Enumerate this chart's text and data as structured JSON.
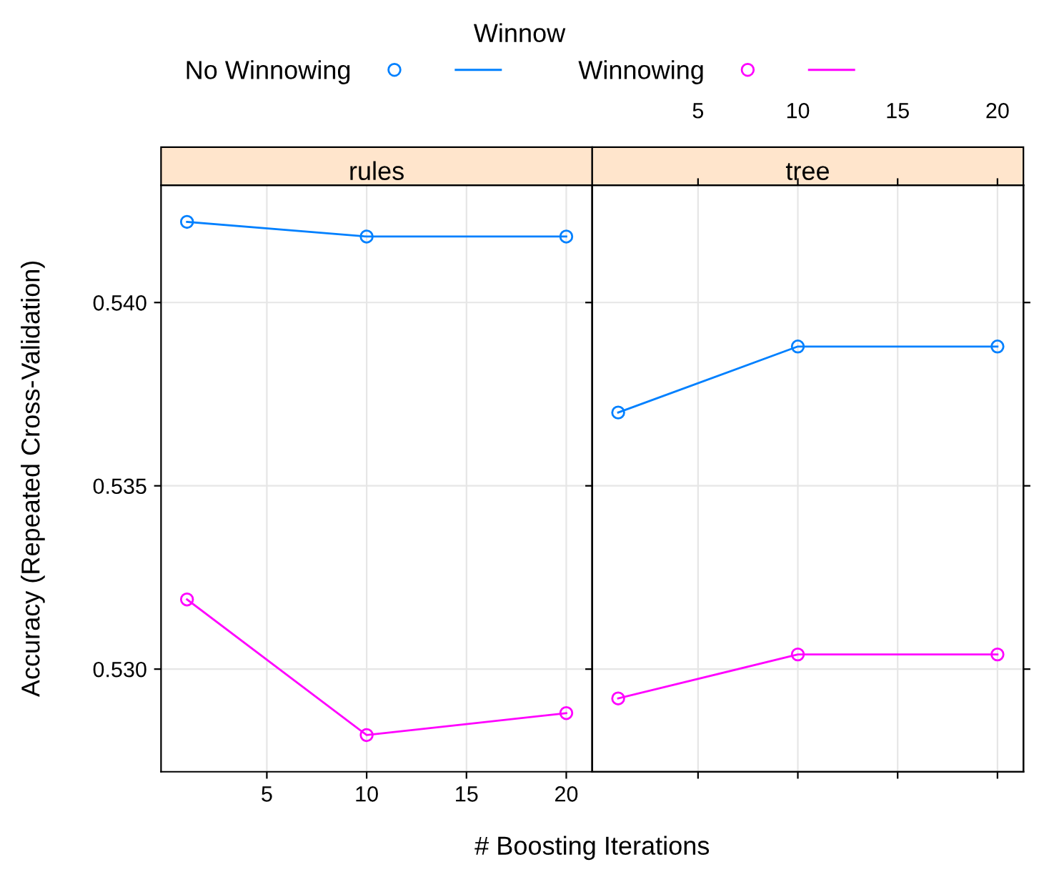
{
  "chart_data": [
    {
      "type": "line",
      "title": "rules",
      "xlabel": "# Boosting Iterations",
      "ylabel": "Accuracy (Repeated Cross-Validation)",
      "legend_title": "Winnow",
      "legend": "top",
      "marker": "circle",
      "grid": true,
      "x": [
        1,
        10,
        20
      ],
      "xlim": [
        -0.3,
        21.3
      ],
      "xticks": [
        5,
        10,
        15,
        20
      ],
      "ylim": [
        0.5272,
        0.5432
      ],
      "yticks": [
        {
          "value": 0.53,
          "label": "0.530"
        },
        {
          "value": 0.535,
          "label": "0.535"
        },
        {
          "value": 0.54,
          "label": "0.540"
        }
      ],
      "series": [
        {
          "name": "No Winnowing",
          "color": "#0080ff",
          "values": [
            0.5422,
            0.5418,
            0.5418
          ]
        },
        {
          "name": "Winnowing",
          "color": "#ff00ff",
          "values": [
            0.5319,
            0.5282,
            0.5288
          ]
        }
      ]
    },
    {
      "type": "line",
      "title": "tree",
      "marker": "circle",
      "grid": true,
      "tick_labels": "x",
      "x": [
        1,
        10,
        20
      ],
      "xlim": [
        -0.3,
        21.3
      ],
      "x2lim": [
        -0.3,
        21.3
      ],
      "x2ticks": [
        5,
        10,
        15,
        20
      ],
      "ylim": [
        0.5272,
        0.5432
      ],
      "yticks": [
        {
          "value": 0.53,
          "label": null
        },
        {
          "value": 0.535,
          "label": null
        },
        {
          "value": 0.54,
          "label": null
        }
      ],
      "series": [
        {
          "color": "#0080ff",
          "values": [
            0.537,
            0.5388,
            0.5388
          ]
        },
        {
          "color": "#ff00ff",
          "values": [
            0.5292,
            0.5304,
            0.5304
          ]
        }
      ]
    }
  ]
}
